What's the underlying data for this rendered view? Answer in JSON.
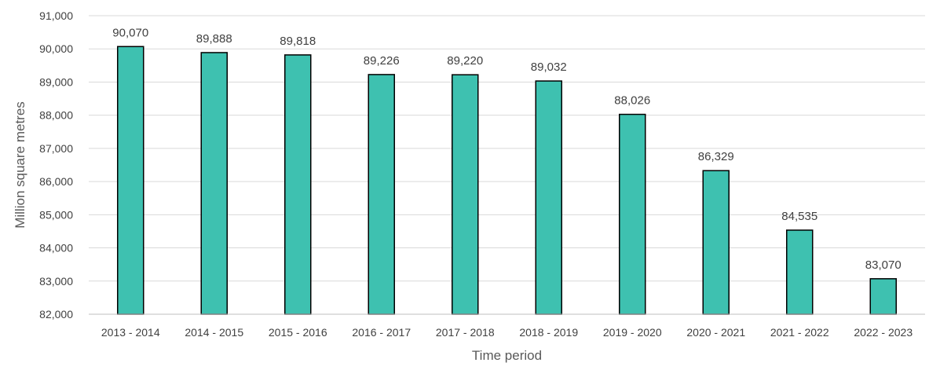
{
  "chart_data": {
    "type": "bar",
    "title": "",
    "xlabel": "Time period",
    "ylabel": "Million square metres",
    "categories": [
      "2013 - 2014",
      "2014 - 2015",
      "2015 - 2016",
      "2016 - 2017",
      "2017 - 2018",
      "2018 - 2019",
      "2019 - 2020",
      "2020 - 2021",
      "2021 - 2022",
      "2022 - 2023"
    ],
    "values": [
      90070,
      89888,
      89818,
      89226,
      89220,
      89032,
      88026,
      86329,
      84535,
      83070
    ],
    "data_labels": [
      "90,070",
      "89,888",
      "89,818",
      "89,226",
      "89,220",
      "89,032",
      "88,026",
      "86,329",
      "84,535",
      "83,070"
    ],
    "ylim": [
      82000,
      91000
    ],
    "yticks": [
      82000,
      83000,
      84000,
      85000,
      86000,
      87000,
      88000,
      89000,
      90000,
      91000
    ],
    "ytick_labels": [
      "82,000",
      "83,000",
      "84,000",
      "85,000",
      "86,000",
      "87,000",
      "88,000",
      "89,000",
      "90,000",
      "91,000"
    ],
    "grid": true,
    "legend": "none",
    "colors": {
      "bar_fill": "#3ec1b0",
      "bar_stroke": "#000000"
    }
  }
}
